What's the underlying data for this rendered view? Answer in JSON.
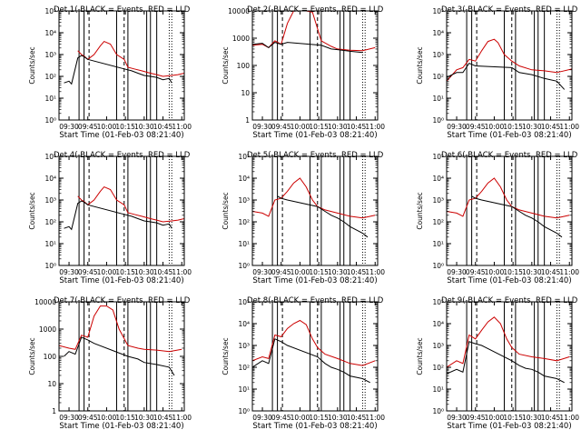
{
  "figure": {
    "start_time_label": "Start Time (01-Feb-03 08:21:40)",
    "ylabel": "Counts/sec",
    "colors": {
      "events": "#000000",
      "lld": "#cc0000"
    },
    "x_ticks": [
      "09:30",
      "09:45",
      "10:00",
      "10:15",
      "10:30",
      "10:45",
      "11:00"
    ],
    "x_tick_minutes": [
      570,
      585,
      600,
      615,
      630,
      645,
      660
    ],
    "xlim_minutes": [
      562,
      662
    ],
    "vertical_lines": {
      "solid_minutes": [
        578,
        582,
        608,
        617,
        632,
        635,
        640
      ],
      "dashed_minutes": [
        586,
        614
      ],
      "dotted_minutes": [
        650,
        652
      ]
    }
  },
  "chart_data": [
    {
      "type": "line",
      "title": "Det 1(-BLACK = Events, RED = LLD",
      "y_scale": "log",
      "ylim": [
        1,
        100000
      ],
      "y_tick_labels": [
        "10⁰",
        "10¹",
        "10²",
        "10³",
        "10⁴",
        "10⁵"
      ],
      "y_tick_values": [
        1,
        10,
        100,
        1000,
        10000,
        100000
      ],
      "xlabel": "Start Time (01-Feb-03 08:21:40)",
      "ylabel": "Counts/sec",
      "series": [
        {
          "color": "red",
          "x": [
            577,
            580,
            582,
            585,
            590,
            595,
            598,
            603,
            608,
            614,
            617,
            622,
            628,
            635,
            640,
            645,
            652,
            657,
            662
          ],
          "y": [
            1500,
            1000,
            850,
            600,
            1000,
            2500,
            4000,
            3000,
            1000,
            600,
            260,
            220,
            180,
            140,
            120,
            100,
            110,
            120,
            140
          ]
        },
        {
          "color": "black",
          "x": [
            566,
            570,
            572,
            577,
            580,
            582,
            585,
            614,
            620,
            625,
            630,
            635,
            640,
            645,
            650,
            652
          ],
          "y": [
            50,
            60,
            45,
            700,
            900,
            800,
            600,
            220,
            180,
            140,
            110,
            100,
            90,
            70,
            80,
            50
          ]
        }
      ]
    },
    {
      "type": "line",
      "title": "Det 2(-BLACK = Events, RED = LLD",
      "y_scale": "log",
      "ylim": [
        1,
        10000
      ],
      "y_tick_labels": [
        "1",
        "10",
        "100",
        "1000",
        "10000"
      ],
      "y_tick_values": [
        1,
        10,
        100,
        1000,
        10000
      ],
      "xlabel": "Start Time (01-Feb-03 08:21:40)",
      "ylabel": "Counts/sec",
      "series": [
        {
          "color": "red",
          "x": [
            562,
            570,
            575,
            580,
            585,
            590,
            595,
            600,
            605,
            610,
            617,
            625,
            630,
            640,
            650,
            660
          ],
          "y": [
            550,
            600,
            450,
            800,
            600,
            3500,
            10000,
            10000,
            10000,
            9000,
            800,
            500,
            400,
            360,
            350,
            450
          ]
        },
        {
          "color": "black",
          "x": [
            562,
            570,
            575,
            580,
            585,
            590,
            617,
            625,
            630,
            640,
            650
          ],
          "y": [
            600,
            650,
            450,
            700,
            600,
            700,
            550,
            400,
            380,
            330,
            300
          ]
        }
      ]
    },
    {
      "type": "line",
      "title": "Det 3(-BLACK = Events, RED = LLD",
      "y_scale": "log",
      "ylim": [
        1,
        100000
      ],
      "y_tick_labels": [
        "10⁰",
        "10¹",
        "10²",
        "10³",
        "10⁴",
        "10⁵"
      ],
      "y_tick_values": [
        1,
        10,
        100,
        1000,
        10000,
        100000
      ],
      "xlabel": "Start Time (01-Feb-03 08:21:40)",
      "ylabel": "Counts/sec",
      "series": [
        {
          "color": "red",
          "x": [
            562,
            570,
            575,
            580,
            585,
            590,
            595,
            600,
            603,
            608,
            614,
            620,
            630,
            640,
            650,
            662
          ],
          "y": [
            60,
            200,
            250,
            600,
            500,
            1500,
            4000,
            5000,
            3500,
            1000,
            500,
            300,
            200,
            180,
            150,
            220
          ]
        },
        {
          "color": "black",
          "x": [
            562,
            570,
            575,
            580,
            585,
            614,
            620,
            630,
            640,
            650,
            656
          ],
          "y": [
            90,
            150,
            150,
            400,
            300,
            250,
            150,
            120,
            80,
            60,
            25
          ]
        }
      ]
    },
    {
      "type": "line",
      "title": "Det 4(-BLACK = Events, RED = LLD",
      "y_scale": "log",
      "ylim": [
        1,
        100000
      ],
      "y_tick_labels": [
        "10⁰",
        "10¹",
        "10²",
        "10³",
        "10⁴",
        "10⁵"
      ],
      "y_tick_values": [
        1,
        10,
        100,
        1000,
        10000,
        100000
      ],
      "xlabel": "Start Time (01-Feb-03 08:21:40)",
      "ylabel": "Counts/sec",
      "series": [
        {
          "color": "red",
          "x": [
            577,
            580,
            582,
            585,
            590,
            595,
            598,
            603,
            608,
            614,
            617,
            622,
            628,
            635,
            640,
            645,
            652,
            657,
            662
          ],
          "y": [
            1500,
            1000,
            850,
            600,
            1000,
            2500,
            4000,
            3000,
            1000,
            600,
            260,
            220,
            180,
            140,
            120,
            100,
            110,
            120,
            140
          ]
        },
        {
          "color": "black",
          "x": [
            566,
            570,
            572,
            577,
            580,
            582,
            585,
            614,
            620,
            625,
            630,
            635,
            640,
            645,
            650,
            652
          ],
          "y": [
            50,
            60,
            45,
            700,
            900,
            800,
            600,
            220,
            180,
            140,
            110,
            100,
            90,
            70,
            80,
            50
          ]
        }
      ]
    },
    {
      "type": "line",
      "title": "Det 5(-BLACK = Events, RED = LLD",
      "y_scale": "log",
      "ylim": [
        1,
        100000
      ],
      "y_tick_labels": [
        "10⁰",
        "10¹",
        "10²",
        "10³",
        "10⁴",
        "10⁵"
      ],
      "y_tick_values": [
        1,
        10,
        100,
        1000,
        10000,
        100000
      ],
      "xlabel": "Start Time (01-Feb-03 08:21:40)",
      "ylabel": "Counts/sec",
      "series": [
        {
          "color": "red",
          "x": [
            562,
            570,
            575,
            580,
            585,
            590,
            595,
            600,
            605,
            610,
            614,
            620,
            630,
            640,
            650,
            660
          ],
          "y": [
            300,
            250,
            180,
            1000,
            1200,
            2500,
            6000,
            10000,
            4000,
            1000,
            500,
            350,
            250,
            180,
            150,
            200
          ]
        },
        {
          "color": "black",
          "x": [
            582,
            585,
            590,
            614,
            620,
            625,
            630,
            635,
            640,
            650,
            654
          ],
          "y": [
            1500,
            1200,
            1000,
            500,
            300,
            200,
            150,
            100,
            60,
            30,
            20
          ]
        }
      ]
    },
    {
      "type": "line",
      "title": "Det 6(-BLACK = Events, RED = LLD",
      "y_scale": "log",
      "ylim": [
        1,
        100000
      ],
      "y_tick_labels": [
        "10⁰",
        "10¹",
        "10²",
        "10³",
        "10⁴",
        "10⁵"
      ],
      "y_tick_values": [
        1,
        10,
        100,
        1000,
        10000,
        100000
      ],
      "xlabel": "Start Time (01-Feb-03 08:21:40)",
      "ylabel": "Counts/sec",
      "series": [
        {
          "color": "red",
          "x": [
            562,
            570,
            575,
            580,
            585,
            590,
            595,
            600,
            605,
            610,
            614,
            620,
            630,
            640,
            650,
            660
          ],
          "y": [
            300,
            250,
            180,
            1000,
            1200,
            2500,
            6000,
            10000,
            4000,
            1000,
            500,
            350,
            250,
            180,
            150,
            200
          ]
        },
        {
          "color": "black",
          "x": [
            582,
            585,
            590,
            614,
            620,
            625,
            630,
            635,
            640,
            650,
            654
          ],
          "y": [
            1500,
            1200,
            1000,
            500,
            300,
            200,
            150,
            100,
            60,
            30,
            20
          ]
        }
      ]
    },
    {
      "type": "line",
      "title": "Det 7(-BLACK = Events, RED = LLD",
      "y_scale": "log",
      "ylim": [
        1,
        10000
      ],
      "y_tick_labels": [
        "1",
        "10",
        "100",
        "1000",
        "10000"
      ],
      "y_tick_values": [
        1,
        10,
        100,
        1000,
        10000
      ],
      "xlabel": "Start Time (01-Feb-03 08:21:40)",
      "ylabel": "Counts/sec",
      "series": [
        {
          "color": "red",
          "x": [
            562,
            570,
            575,
            580,
            585,
            590,
            595,
            600,
            605,
            610,
            617,
            625,
            630,
            640,
            650,
            660
          ],
          "y": [
            250,
            200,
            180,
            600,
            500,
            3000,
            7000,
            7000,
            5000,
            1000,
            250,
            200,
            180,
            170,
            150,
            180
          ]
        },
        {
          "color": "black",
          "x": [
            566,
            570,
            575,
            580,
            585,
            590,
            617,
            625,
            630,
            640,
            650,
            654
          ],
          "y": [
            100,
            150,
            120,
            500,
            400,
            300,
            100,
            80,
            60,
            50,
            40,
            20
          ]
        }
      ]
    },
    {
      "type": "line",
      "title": "Det 8(-BLACK = Events, RED = LLD",
      "y_scale": "log",
      "ylim": [
        1,
        100000
      ],
      "y_tick_labels": [
        "10⁰",
        "10¹",
        "10²",
        "10³",
        "10⁴",
        "10⁵"
      ],
      "y_tick_values": [
        1,
        10,
        100,
        1000,
        10000,
        100000
      ],
      "xlabel": "Start Time (01-Feb-03 08:21:40)",
      "ylabel": "Counts/sec",
      "series": [
        {
          "color": "red",
          "x": [
            562,
            570,
            575,
            580,
            585,
            590,
            595,
            600,
            605,
            610,
            614,
            620,
            630,
            640,
            650,
            660
          ],
          "y": [
            200,
            300,
            250,
            3000,
            2500,
            6000,
            10000,
            14000,
            9000,
            2000,
            800,
            400,
            250,
            150,
            120,
            200
          ]
        },
        {
          "color": "black",
          "x": [
            562,
            570,
            575,
            580,
            585,
            590,
            614,
            620,
            625,
            630,
            635,
            640,
            650,
            656
          ],
          "y": [
            100,
            200,
            150,
            2000,
            1500,
            1000,
            300,
            150,
            100,
            80,
            60,
            40,
            30,
            20
          ]
        }
      ]
    },
    {
      "type": "line",
      "title": "Det 9(-BLACK = Events, RED = LLD",
      "y_scale": "log",
      "ylim": [
        1,
        100000
      ],
      "y_tick_labels": [
        "10⁰",
        "10¹",
        "10²",
        "10³",
        "10⁴",
        "10⁵"
      ],
      "y_tick_values": [
        1,
        10,
        100,
        1000,
        10000,
        100000
      ],
      "xlabel": "Start Time (01-Feb-03 08:21:40)",
      "ylabel": "Counts/sec",
      "series": [
        {
          "color": "red",
          "x": [
            562,
            570,
            575,
            580,
            585,
            590,
            595,
            600,
            605,
            610,
            614,
            620,
            630,
            640,
            650,
            660
          ],
          "y": [
            100,
            200,
            150,
            3000,
            2000,
            5000,
            12000,
            20000,
            10000,
            2000,
            800,
            400,
            300,
            250,
            200,
            300
          ]
        },
        {
          "color": "black",
          "x": [
            562,
            570,
            575,
            580,
            585,
            590,
            614,
            620,
            625,
            630,
            635,
            640,
            650,
            656
          ],
          "y": [
            50,
            80,
            60,
            1500,
            1200,
            1000,
            200,
            120,
            90,
            80,
            60,
            40,
            30,
            20
          ]
        }
      ]
    }
  ]
}
